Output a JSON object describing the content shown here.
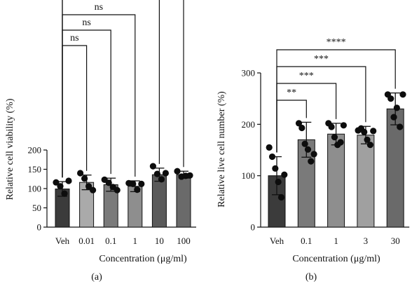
{
  "chart_data": [
    {
      "type": "bar",
      "panel_label": "(a)",
      "categories": [
        "Veh",
        "0.01",
        "0.1",
        "1",
        "10",
        "100"
      ],
      "values": [
        99,
        116,
        110,
        106,
        136,
        136
      ],
      "errors": [
        19,
        19,
        17,
        14,
        17,
        9
      ],
      "points": [
        [
          116,
          106,
          87,
          120
        ],
        [
          140,
          126,
          106,
          96
        ],
        [
          123,
          115,
          104,
          96
        ],
        [
          114,
          112,
          97,
          112
        ],
        [
          158,
          138,
          124,
          140
        ],
        [
          145,
          131,
          133,
          134
        ]
      ],
      "bar_colors": [
        "#3b3b3b",
        "#aaaaaa",
        "#7a7a7a",
        "#8e8e8e",
        "#5a5a5a",
        "#6a6a6a"
      ],
      "ylabel": "Relative cell viability (%)",
      "xlabel": "Concentration (μg/ml)",
      "ylim": [
        0,
        200
      ],
      "yticks": [
        0,
        50,
        100,
        150,
        200
      ],
      "comparisons": [
        {
          "to": 1,
          "label": "ns"
        },
        {
          "to": 2,
          "label": "ns"
        },
        {
          "to": 3,
          "label": "ns"
        },
        {
          "to": 4,
          "label": "*"
        },
        {
          "to": 5,
          "label": "*"
        }
      ]
    },
    {
      "type": "bar",
      "panel_label": "(b)",
      "categories": [
        "Veh",
        "0.1",
        "1",
        "3",
        "30"
      ],
      "values": [
        100,
        170,
        181,
        179,
        230
      ],
      "errors": [
        37,
        34,
        21,
        17,
        31
      ],
      "points": [
        [
          155,
          137,
          114,
          88,
          58,
          102
        ],
        [
          202,
          193,
          162,
          151,
          128,
          142
        ],
        [
          202,
          195,
          175,
          160,
          165,
          198
        ],
        [
          188,
          192,
          185,
          170,
          160,
          187
        ],
        [
          258,
          250,
          214,
          232,
          195,
          258
        ]
      ],
      "bar_colors": [
        "#3b3b3b",
        "#7a7a7a",
        "#8e8e8e",
        "#a0a0a0",
        "#6a6a6a"
      ],
      "ylabel": "Relative live cell number (%)",
      "xlabel": "Concentration (μg/ml)",
      "ylim": [
        0,
        300
      ],
      "yticks": [
        0,
        100,
        200,
        300
      ],
      "comparisons": [
        {
          "to": 1,
          "label": "**"
        },
        {
          "to": 2,
          "label": "***"
        },
        {
          "to": 3,
          "label": "***"
        },
        {
          "to": 4,
          "label": "****"
        }
      ]
    }
  ]
}
